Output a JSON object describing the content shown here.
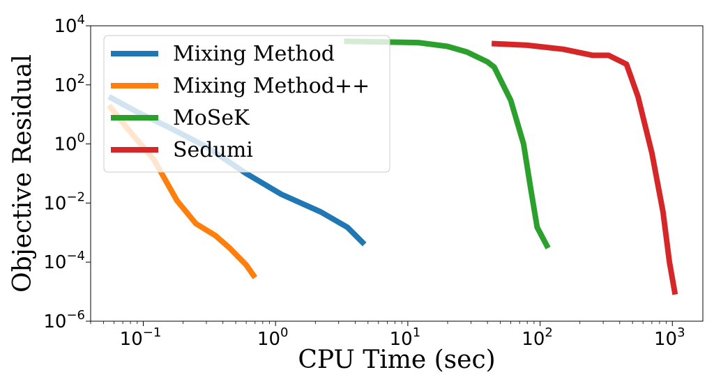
{
  "chart_data": {
    "type": "line",
    "xlabel": "CPU Time (sec)",
    "ylabel": "Objective Residual",
    "x_scale": "log",
    "y_scale": "log",
    "xlim": [
      0.04,
      1700
    ],
    "ylim": [
      1e-06,
      10000
    ],
    "x_ticks": [
      {
        "value": 0.1,
        "base": "10",
        "exp": "−1"
      },
      {
        "value": 1,
        "base": "10",
        "exp": "0"
      },
      {
        "value": 10,
        "base": "10",
        "exp": "1"
      },
      {
        "value": 100,
        "base": "10",
        "exp": "2"
      },
      {
        "value": 1000,
        "base": "10",
        "exp": "3"
      }
    ],
    "y_ticks": [
      {
        "value": 1e-06,
        "base": "10",
        "exp": "−6"
      },
      {
        "value": 0.0001,
        "base": "10",
        "exp": "−4"
      },
      {
        "value": 0.01,
        "base": "10",
        "exp": "−2"
      },
      {
        "value": 1,
        "base": "10",
        "exp": "0"
      },
      {
        "value": 100,
        "base": "10",
        "exp": "2"
      },
      {
        "value": 10000,
        "base": "10",
        "exp": "4"
      }
    ],
    "grid": false,
    "legend_position": "top-left",
    "series": [
      {
        "name": "Mixing Method",
        "color": "#1f77b4",
        "points": [
          [
            0.055,
            40
          ],
          [
            0.09,
            12
          ],
          [
            0.15,
            4
          ],
          [
            0.3,
            0.8
          ],
          [
            0.6,
            0.1
          ],
          [
            1.1,
            0.02
          ],
          [
            2.2,
            0.005
          ],
          [
            3.5,
            0.0015
          ],
          [
            4.7,
            0.0004
          ]
        ]
      },
      {
        "name": "Mixing Method++",
        "color": "#ff7f0e",
        "points": [
          [
            0.055,
            20
          ],
          [
            0.08,
            2.5
          ],
          [
            0.12,
            0.3
          ],
          [
            0.18,
            0.012
          ],
          [
            0.25,
            0.002
          ],
          [
            0.35,
            0.0008
          ],
          [
            0.45,
            0.0003
          ],
          [
            0.6,
            8e-05
          ],
          [
            0.7,
            3e-05
          ]
        ]
      },
      {
        "name": "MoSeK",
        "color": "#2ca02c",
        "points": [
          [
            3.3,
            3000
          ],
          [
            12,
            2700
          ],
          [
            20,
            2000
          ],
          [
            28,
            1300
          ],
          [
            40,
            600
          ],
          [
            45,
            400
          ],
          [
            60,
            30
          ],
          [
            75,
            1
          ],
          [
            85,
            0.03
          ],
          [
            95,
            0.0015
          ],
          [
            115,
            0.0003
          ]
        ]
      },
      {
        "name": "Sedumi",
        "color": "#d62728",
        "points": [
          [
            43,
            2500
          ],
          [
            80,
            2200
          ],
          [
            150,
            1600
          ],
          [
            250,
            1000
          ],
          [
            330,
            1000
          ],
          [
            450,
            500
          ],
          [
            550,
            40
          ],
          [
            700,
            0.5
          ],
          [
            850,
            0.005
          ],
          [
            950,
            0.0001
          ],
          [
            1050,
            8e-06
          ]
        ]
      }
    ]
  }
}
